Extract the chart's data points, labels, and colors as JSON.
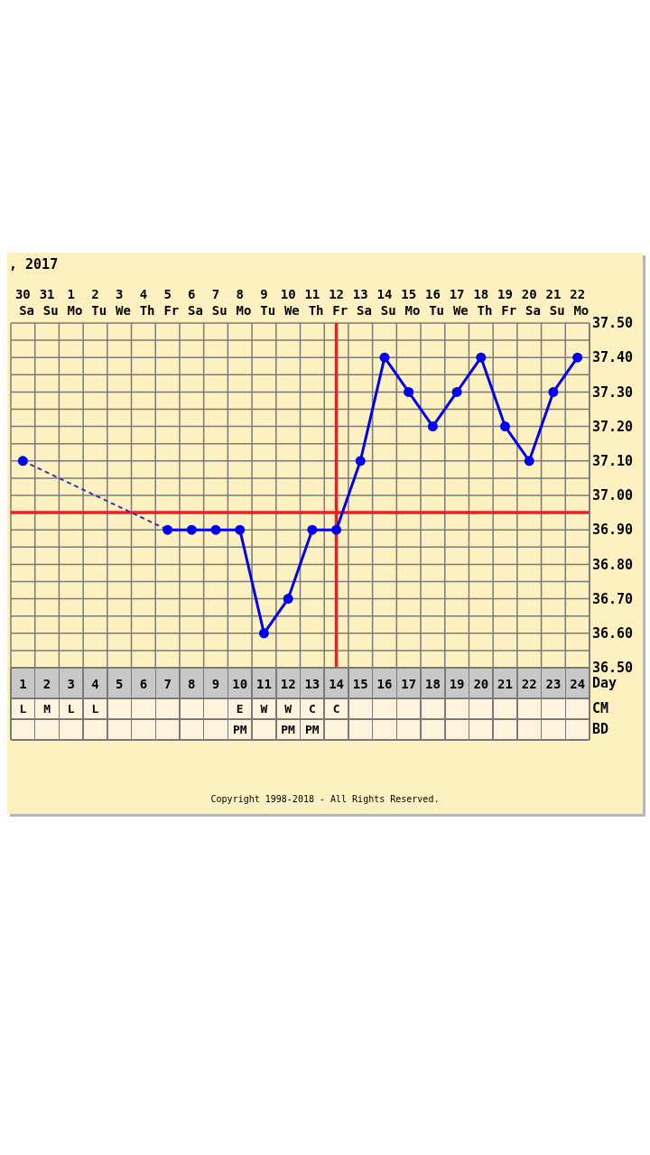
{
  "chart_data": [
    {
      "type": "line",
      "title": ", 2017",
      "categories": [
        "30 Sa",
        "31 Su",
        "1 Mo",
        "2 Tu",
        "3 We",
        "4 Th",
        "5 Fr",
        "6 Sa",
        "7 Su",
        "8 Mo",
        "9 Tu",
        "10 We",
        "11 Th",
        "12 Fr",
        "13 Sa",
        "14 Su",
        "15 Mo",
        "16 Tu",
        "17 We",
        "18 Th",
        "19 Fr",
        "20 Sa",
        "21 Su",
        "22 Mo"
      ],
      "series": [
        {
          "type": "line",
          "color": "#3434b4",
          "x": [
            "30 Sa",
            "5 Fr"
          ],
          "values": [
            37.1,
            36.9
          ],
          "line_style": "dashed",
          "marker": "none"
        },
        {
          "color": "#0000ee",
          "values": [
            37.1,
            null,
            null,
            null,
            null,
            null,
            36.9,
            36.9,
            36.9,
            36.9,
            36.6,
            36.7,
            36.9,
            36.9,
            37.1,
            37.4,
            37.3,
            37.2,
            37.3,
            37.4,
            37.2,
            37.1,
            37.3,
            37.4
          ]
        }
      ],
      "ylim": [
        36.5,
        37.5
      ],
      "yticks": [
        {
          "value": 36.5,
          "label": "36.50"
        },
        {
          "value": 36.55,
          "label": null
        },
        {
          "value": 36.6,
          "label": "36.60"
        },
        {
          "value": 36.65,
          "label": null
        },
        {
          "value": 36.7,
          "label": "36.70"
        },
        {
          "value": 36.75,
          "label": null
        },
        {
          "value": 36.8,
          "label": "36.80"
        },
        {
          "value": 36.85,
          "label": null
        },
        {
          "value": 36.9,
          "label": "36.90"
        },
        {
          "value": 37.0,
          "label": "37.00"
        },
        {
          "value": 37.05,
          "label": null
        },
        {
          "value": 37.1,
          "label": "37.10"
        },
        {
          "value": 37.15,
          "label": null
        },
        {
          "value": 37.2,
          "label": "37.20"
        },
        {
          "value": 37.25,
          "label": null
        },
        {
          "value": 37.3,
          "label": "37.30"
        },
        {
          "value": 37.35,
          "label": null
        },
        {
          "value": 37.4,
          "label": "37.40"
        },
        {
          "value": 37.45,
          "label": null
        },
        {
          "value": 37.5,
          "label": "37.50"
        }
      ],
      "x2label": "Day",
      "x2lim": [
        0.5,
        24.5
      ],
      "x2ticks": [
        1,
        2,
        3,
        4,
        5,
        6,
        7,
        8,
        9,
        10,
        11,
        12,
        13,
        14,
        15,
        16,
        17,
        18,
        19,
        20,
        21,
        22,
        23,
        24
      ],
      "grid": true,
      "marker": "circle",
      "line_style": "solid",
      "ref_lines": [
        {
          "axis": "y",
          "value": 36.95,
          "color": "#ee1c24"
        },
        {
          "axis": "x",
          "value": "12 Fr",
          "color": "#ee1c24"
        }
      ]
    },
    {
      "type": "other",
      "y_categories": [
        "CM",
        "BD"
      ],
      "cell_labels": [
        [
          "L",
          "M",
          "L",
          "L",
          null,
          null,
          null,
          null,
          null,
          "E",
          "W",
          "W",
          "C",
          "C",
          null,
          null,
          null,
          null,
          null,
          null,
          null,
          null,
          null,
          null
        ],
        [
          null,
          null,
          null,
          null,
          null,
          null,
          null,
          null,
          null,
          "PM",
          null,
          "PM",
          "PM",
          null,
          null,
          null,
          null,
          null,
          null,
          null,
          null,
          null,
          null,
          null
        ]
      ],
      "annotations": [
        "Copyright 1998-2018 - All Rights Reserved."
      ]
    }
  ]
}
